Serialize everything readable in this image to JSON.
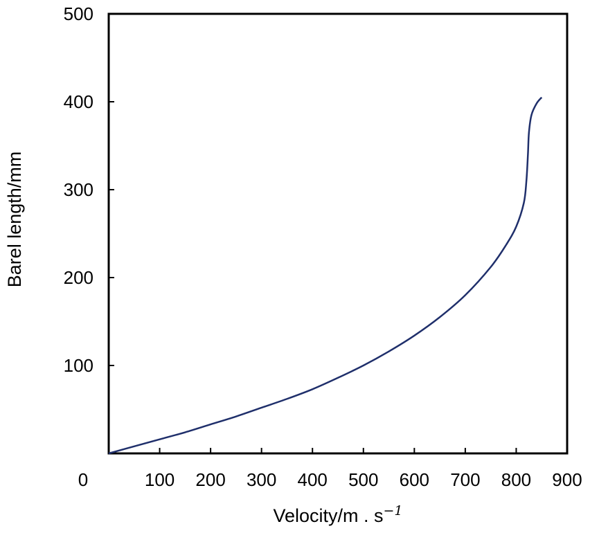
{
  "chart_data": {
    "type": "line",
    "title": "",
    "xlabel": "Velocity/m . s",
    "xlabel_sup": "−1",
    "ylabel": "Barel length/mm",
    "xlim": [
      0,
      900
    ],
    "ylim": [
      0,
      500
    ],
    "xticks": [
      0,
      100,
      200,
      300,
      400,
      500,
      600,
      700,
      800,
      900
    ],
    "yticks": [
      100,
      200,
      300,
      400,
      500
    ],
    "xtick_labels": [
      "0",
      "100",
      "200",
      "300",
      "400",
      "500",
      "600",
      "700",
      "800",
      "900"
    ],
    "ytick_labels": [
      "100",
      "200",
      "300",
      "400",
      "500"
    ],
    "grid": false,
    "colors": {
      "line": "#1f2f6b",
      "axis": "#000000"
    },
    "series": [
      {
        "x": [
          0,
          50,
          100,
          150,
          200,
          250,
          300,
          350,
          400,
          450,
          500,
          550,
          600,
          650,
          700,
          750,
          780,
          800,
          815,
          820,
          823,
          825,
          830,
          840,
          850
        ],
        "y": [
          0,
          8,
          16,
          24,
          33,
          42,
          52,
          62,
          73,
          86,
          100,
          116,
          134,
          155,
          180,
          212,
          237,
          258,
          285,
          310,
          340,
          365,
          385,
          398,
          405
        ]
      }
    ]
  }
}
